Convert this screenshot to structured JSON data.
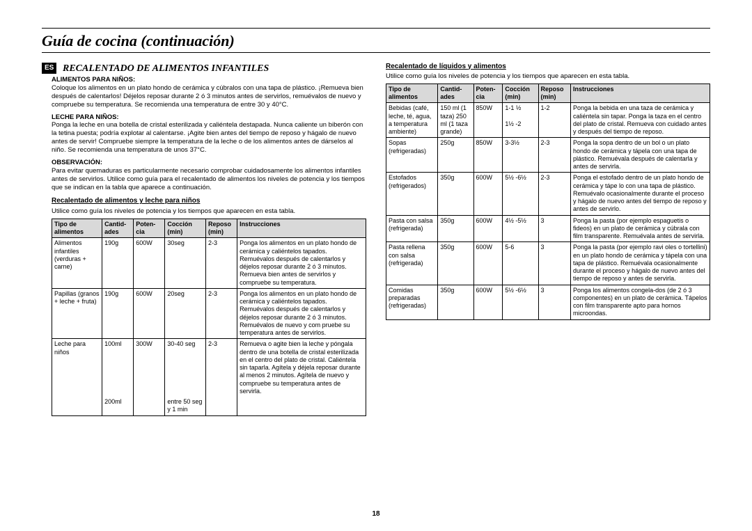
{
  "page": {
    "title": "Guía de cocina (continuación)",
    "number": "18",
    "lang_badge": "ES"
  },
  "left": {
    "section_title": "RECALENTADO DE ALIMENTOS INFANTILES",
    "sub1_head": "ALIMENTOS PARA NIÑOS:",
    "sub1_body": "Coloque los alimentos en un plato hondo de cerámica y cúbralos con una tapa de plástico. ¡Remueva bien después de calentarlos! Déjelos reposar durante 2 ó 3 minutos antes de servirlos, remuévalos de nuevo y compruebe su temperatura. Se recomienda una temperatura de entre 30 y 40°C.",
    "sub2_head": "LECHE PARA NIÑOS:",
    "sub2_body": "Ponga la leche en una botella de cristal esterilizada y caliéntela destapada. Nunca caliente un biberón con la tetina puesta; podría explotar al calentarse. ¡Agite bien antes del tiempo de reposo y hágalo de nuevo antes de servir! Compruebe siempre la temperatura de la leche o de los alimentos antes de dárselos al niño. Se recomienda una temperatura de unos 37°C.",
    "sub3_head": "OBSERVACIÓN:",
    "sub3_body": "Para evitar quemaduras es particularmente necesario comprobar cuidadosamente los alimentos infantiles antes de servirlos. Utilice como guía para el recalentado de alimentos los niveles de potencia y los tiempos que se indican en la tabla que aparece a continuación.",
    "table_title": "Recalentado de alimentos y leche para niños",
    "table_note": "Utilice como guía los niveles de potencia y los tiempos que aparecen en esta tabla.",
    "headers": [
      "Tipo de alimentos",
      "Cantid-ades",
      "Poten-cia",
      "Cocción (min)",
      "Reposo (min)",
      "Instrucciones"
    ],
    "rows": [
      {
        "c": [
          "Alimentos infantiles (verduras + carne)",
          "190g",
          "600W",
          "30seg",
          "2-3",
          "Ponga los alimentos en un plato hondo de cerámica y caliéntelos tapados. Remuévalos después de calentarlos y  déjelos reposar durante 2 ó 3 minutos. Remueva bien antes de servirlos y compruebe su temperatura."
        ]
      },
      {
        "c": [
          "Papillas (granos + leche + fruta)",
          "190g",
          "600W",
          "20seg",
          "2-3",
          "Ponga los alimentos en un plato hondo de cerámica y caliéntelos tapados. Remuévalos después de calentarlos y déjelos reposar durante 2 ó 3 minutos. Remuévalos de nuevo y com pruebe su temperatura antes de servirlos."
        ]
      },
      {
        "c": [
          "Leche para niños",
          "100ml",
          "300W",
          "30-40 seg",
          "2-3",
          "Remueva o agite bien la leche y póngala dentro de una botella de cristal esterilizada en el centro del plato de cristal. Caliéntela sin taparla. Agítela y  déjela reposar durante al menos 2 minutos. Agítela de nuevo y compruebe su temperatura antes de servirla."
        ],
        "extra2": "200ml",
        "extra4": "entre 50 seg y 1 min"
      }
    ]
  },
  "right": {
    "table_title": "Recalentado de líquidos y alimentos",
    "table_note": "Utilice como guía los niveles de potencia y los tiempos que aparecen en esta tabla.",
    "headers": [
      "Tipo de alimentos",
      "Cantid-ades",
      "Poten-cia",
      "Cocción (min)",
      "Reposo (min)",
      "Instrucciones"
    ],
    "rows": [
      {
        "c": [
          "Bebidas (café, leche, té, agua, a temperatura ambiente)",
          "150 ml (1 taza) 250 ml (1 taza grande)",
          "850W",
          "1-1 ½\n\n1½ -2",
          "1-2",
          "Ponga la bebida en una taza de cerámica y caliéntela sin tapar. Ponga la taza en el centro del plato de cristal. Remueva con cuidado antes y después del tiempo de reposo."
        ]
      },
      {
        "c": [
          "Sopas (refrigeradas)",
          "250g",
          "850W",
          "3-3½",
          "2-3",
          "Ponga la sopa dentro de un bol o un plato hondo de cerámica y tápela con una tapa de plástico. Remuévala después de calentarla y antes de servirla."
        ]
      },
      {
        "c": [
          "Estofados (refrigerados)",
          "350g",
          "600W",
          "5½ -6½",
          "2-3",
          "Ponga el estofado dentro de un plato hondo de cerámica y tápe lo con una tapa de plástico. Remuévalo ocasionalmente durante el proceso y hágalo de nuevo antes del tiempo de reposo y antes de servirlo."
        ]
      },
      {
        "c": [
          "Pasta con salsa (refrigerada)",
          "350g",
          "600W",
          "4½ -5½",
          "3",
          "Ponga la pasta (por ejemplo espaguetis o fideos) en un plato de cerámica y cúbrala con film transparente. Remuévala antes de servirla."
        ]
      },
      {
        "c": [
          "Pasta rellena con salsa (refrigerada)",
          "350g",
          "600W",
          "5-6",
          "3",
          "Ponga la pasta (por ejemplo ravi oles o tortellini) en un plato hondo de cerámica y tápela con una tapa de plástico. Remuévala ocasionalmente durante el proceso y hágalo de nuevo antes del tiempo de reposo y antes de servirla."
        ]
      },
      {
        "c": [
          "Comidas preparadas (refrigeradas)",
          "350g",
          "600W",
          "5½ -6½",
          "3",
          "Ponga los alimentos congela-dos (de 2 ó 3 componentes) en un plato de cerámica. Tápelos con film transparente apto para hornos microondas."
        ]
      }
    ]
  }
}
